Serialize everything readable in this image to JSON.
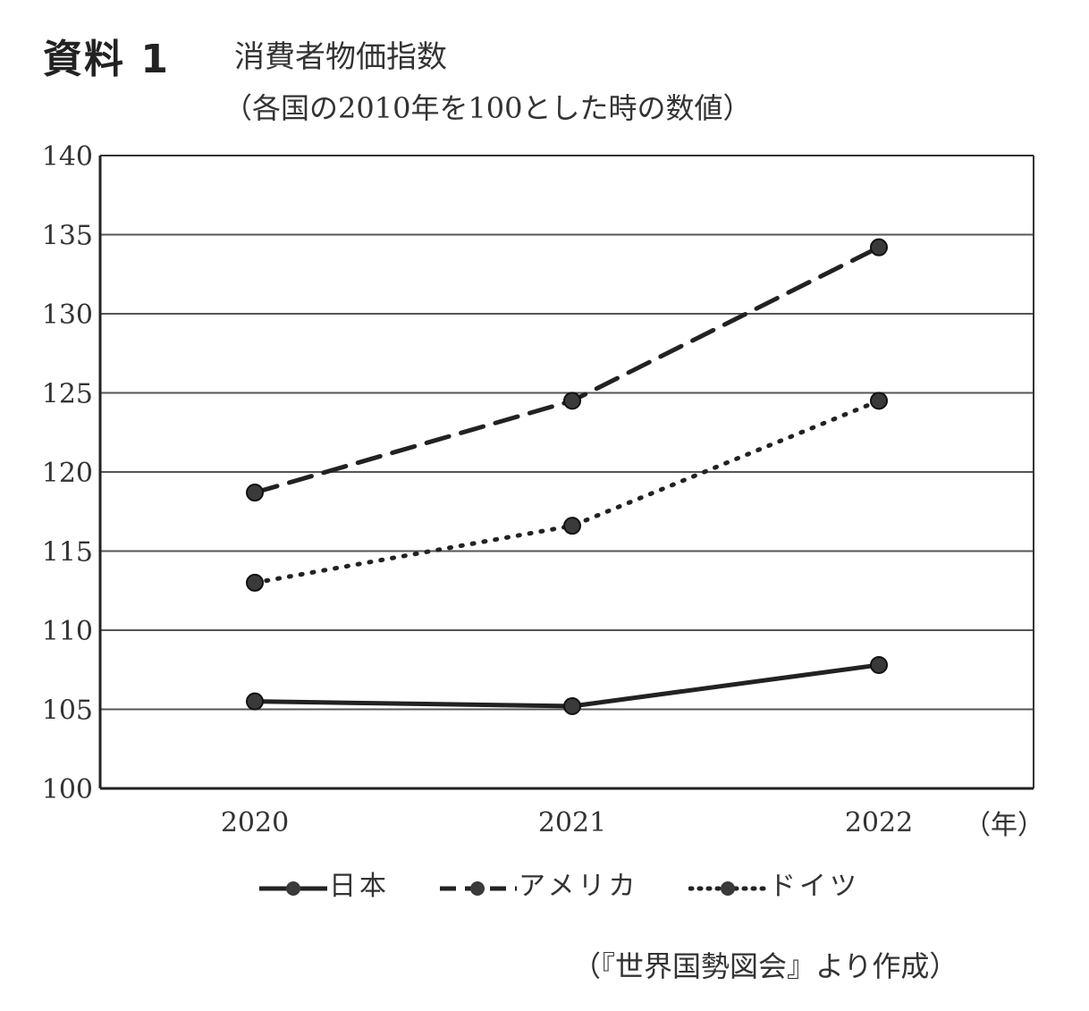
{
  "header": {
    "material": "資料 1",
    "title": "消費者物価指数",
    "subtitle": "（各国の2010年を100とした時の数値）"
  },
  "axis": {
    "x_unit": "（年）"
  },
  "source": "（『世界国勢図会』より作成）",
  "colors": {
    "line": "#222222",
    "marker": "#3a3a3a",
    "grid": "#555555"
  },
  "chart_data": {
    "type": "line",
    "categories": [
      "2020",
      "2021",
      "2022"
    ],
    "ylim": [
      100,
      140
    ],
    "yticks": [
      100,
      105,
      110,
      115,
      120,
      125,
      130,
      135,
      140
    ],
    "grid": true,
    "legend_position": "bottom",
    "series": [
      {
        "name": "日本",
        "values": [
          105.5,
          105.2,
          107.8
        ],
        "style": "solid"
      },
      {
        "name": "アメリカ",
        "values": [
          118.7,
          124.5,
          134.2
        ],
        "style": "dashed"
      },
      {
        "name": "ドイツ",
        "values": [
          113.0,
          116.6,
          124.5
        ],
        "style": "dotted"
      }
    ]
  }
}
